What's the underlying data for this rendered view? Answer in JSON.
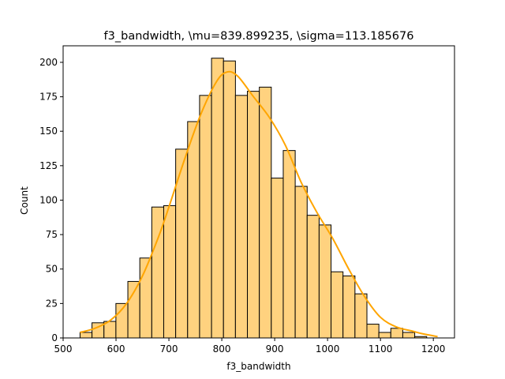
{
  "chart_data": {
    "type": "bar",
    "title": "f3_bandwidth, \\mu=839.899235, \\sigma=113.185676",
    "xlabel": "f3_bandwidth",
    "ylabel": "Count",
    "xlim": [
      500,
      1240
    ],
    "ylim": [
      0,
      212
    ],
    "xticks": [
      500,
      600,
      700,
      800,
      900,
      1000,
      1100,
      1200
    ],
    "yticks": [
      0,
      25,
      50,
      75,
      100,
      125,
      150,
      175,
      200
    ],
    "bin_start": 532,
    "bin_width": 22.6,
    "counts": [
      4,
      11,
      12,
      25,
      41,
      58,
      95,
      96,
      137,
      157,
      176,
      203,
      201,
      176,
      179,
      182,
      116,
      136,
      110,
      89,
      82,
      48,
      45,
      32,
      10,
      4,
      7,
      4,
      1
    ],
    "kde": {
      "x": [
        532,
        560,
        590,
        620,
        650,
        680,
        700,
        730,
        760,
        790,
        810,
        830,
        860,
        890,
        920,
        950,
        980,
        1010,
        1040,
        1070,
        1100,
        1130,
        1160,
        1180,
        1208
      ],
      "y": [
        4,
        7,
        13,
        25,
        45,
        73,
        95,
        130,
        162,
        186,
        193,
        190,
        175,
        160,
        140,
        113,
        91,
        72,
        50,
        30,
        15,
        8,
        5,
        3,
        1
      ]
    },
    "grid": false,
    "colors": {
      "bar_fill": "#ffd27f",
      "bar_edge": "#000000",
      "kde_line": "#ffa500"
    }
  }
}
